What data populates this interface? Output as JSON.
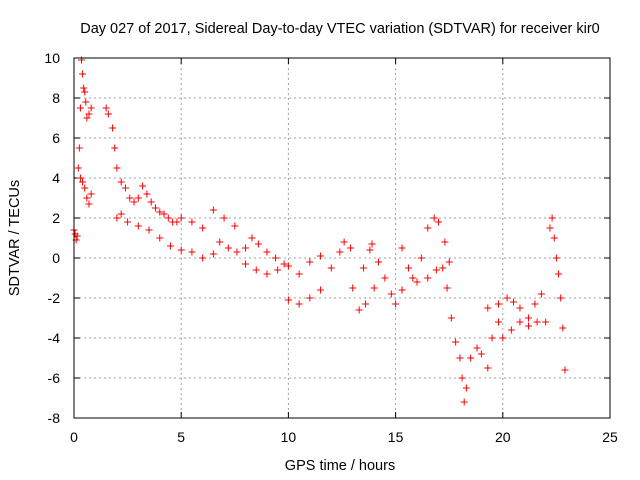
{
  "chart_data": {
    "type": "scatter",
    "title": "Day 027 of 2017, Sidereal Day-to-day VTEC variation (SDTVAR) for receiver kir0",
    "xlabel": "GPS time / hours",
    "ylabel": "SDTVAR / TECUs",
    "xlim": [
      0,
      25
    ],
    "ylim": [
      -8,
      10
    ],
    "xticks": [
      0,
      5,
      10,
      15,
      20,
      25
    ],
    "yticks": [
      -8,
      -6,
      -4,
      -2,
      0,
      2,
      4,
      6,
      8,
      10
    ],
    "grid": true,
    "marker": "+",
    "color": "#ff0000",
    "series": [
      {
        "name": "SDTVAR",
        "points": [
          [
            0.0,
            1.4
          ],
          [
            0.05,
            1.2
          ],
          [
            0.1,
            0.9
          ],
          [
            0.15,
            1.1
          ],
          [
            0.2,
            4.5
          ],
          [
            0.25,
            5.5
          ],
          [
            0.3,
            7.5
          ],
          [
            0.35,
            9.9
          ],
          [
            0.4,
            9.2
          ],
          [
            0.45,
            8.5
          ],
          [
            0.5,
            8.3
          ],
          [
            0.55,
            7.8
          ],
          [
            0.6,
            7.0
          ],
          [
            0.7,
            7.2
          ],
          [
            0.8,
            7.5
          ],
          [
            0.3,
            4.0
          ],
          [
            0.4,
            3.8
          ],
          [
            0.5,
            3.5
          ],
          [
            0.6,
            3.0
          ],
          [
            0.7,
            2.7
          ],
          [
            0.8,
            3.2
          ],
          [
            1.5,
            7.5
          ],
          [
            1.6,
            7.2
          ],
          [
            1.8,
            6.5
          ],
          [
            1.9,
            5.5
          ],
          [
            2.0,
            4.5
          ],
          [
            2.2,
            3.8
          ],
          [
            2.4,
            3.5
          ],
          [
            2.6,
            3.0
          ],
          [
            2.8,
            2.8
          ],
          [
            3.0,
            3.0
          ],
          [
            3.2,
            3.6
          ],
          [
            3.4,
            3.2
          ],
          [
            3.6,
            2.8
          ],
          [
            3.8,
            2.5
          ],
          [
            4.0,
            2.3
          ],
          [
            4.2,
            2.2
          ],
          [
            4.4,
            2.0
          ],
          [
            4.6,
            1.8
          ],
          [
            4.8,
            1.8
          ],
          [
            5.0,
            2.0
          ],
          [
            2.0,
            2.0
          ],
          [
            2.2,
            2.2
          ],
          [
            2.5,
            1.8
          ],
          [
            3.0,
            1.6
          ],
          [
            3.5,
            1.4
          ],
          [
            4.0,
            1.0
          ],
          [
            4.5,
            0.6
          ],
          [
            5.0,
            0.4
          ],
          [
            5.5,
            0.3
          ],
          [
            6.0,
            0.0
          ],
          [
            6.5,
            0.2
          ],
          [
            5.5,
            1.8
          ],
          [
            6.0,
            1.5
          ],
          [
            6.5,
            2.4
          ],
          [
            7.0,
            2.0
          ],
          [
            7.5,
            1.6
          ],
          [
            6.8,
            0.8
          ],
          [
            7.2,
            0.5
          ],
          [
            7.6,
            0.3
          ],
          [
            8.0,
            0.5
          ],
          [
            8.3,
            1.0
          ],
          [
            8.6,
            0.7
          ],
          [
            9.0,
            0.3
          ],
          [
            9.4,
            0.0
          ],
          [
            9.8,
            -0.3
          ],
          [
            8.0,
            -0.3
          ],
          [
            8.5,
            -0.6
          ],
          [
            9.0,
            -0.8
          ],
          [
            9.5,
            -0.6
          ],
          [
            10.0,
            -0.4
          ],
          [
            10.5,
            -0.8
          ],
          [
            11.0,
            -0.2
          ],
          [
            11.5,
            0.1
          ],
          [
            10.0,
            -2.1
          ],
          [
            10.5,
            -2.3
          ],
          [
            11.0,
            -2.0
          ],
          [
            11.5,
            -1.6
          ],
          [
            12.0,
            -0.5
          ],
          [
            12.4,
            0.3
          ],
          [
            12.6,
            0.8
          ],
          [
            12.9,
            0.5
          ],
          [
            13.0,
            -1.5
          ],
          [
            13.3,
            -2.6
          ],
          [
            13.6,
            -2.3
          ],
          [
            14.0,
            -1.5
          ],
          [
            13.5,
            -0.5
          ],
          [
            13.8,
            0.4
          ],
          [
            13.9,
            0.7
          ],
          [
            14.2,
            -0.2
          ],
          [
            14.5,
            -1.0
          ],
          [
            14.8,
            -1.8
          ],
          [
            15.0,
            -2.3
          ],
          [
            15.3,
            -1.6
          ],
          [
            15.3,
            0.5
          ],
          [
            15.6,
            -0.5
          ],
          [
            15.8,
            -1.0
          ],
          [
            16.0,
            -1.2
          ],
          [
            16.2,
            0.0
          ],
          [
            16.5,
            1.5
          ],
          [
            16.8,
            2.0
          ],
          [
            17.0,
            1.8
          ],
          [
            17.3,
            0.8
          ],
          [
            17.5,
            -0.2
          ],
          [
            16.5,
            -1.0
          ],
          [
            16.9,
            -0.6
          ],
          [
            17.2,
            -0.5
          ],
          [
            17.4,
            -1.5
          ],
          [
            17.6,
            -3.0
          ],
          [
            17.8,
            -4.2
          ],
          [
            18.0,
            -5.0
          ],
          [
            18.1,
            -6.0
          ],
          [
            18.2,
            -7.2
          ],
          [
            18.3,
            -6.5
          ],
          [
            18.5,
            -5.0
          ],
          [
            18.8,
            -4.5
          ],
          [
            19.0,
            -4.8
          ],
          [
            19.3,
            -5.5
          ],
          [
            19.5,
            -4.0
          ],
          [
            19.8,
            -3.2
          ],
          [
            19.3,
            -2.5
          ],
          [
            19.8,
            -2.3
          ],
          [
            20.2,
            -2.0
          ],
          [
            20.5,
            -2.2
          ],
          [
            20.8,
            -2.5
          ],
          [
            21.2,
            -3.0
          ],
          [
            21.5,
            -2.3
          ],
          [
            21.8,
            -1.8
          ],
          [
            20.0,
            -4.0
          ],
          [
            20.4,
            -3.6
          ],
          [
            20.8,
            -3.2
          ],
          [
            21.2,
            -3.4
          ],
          [
            21.6,
            -3.2
          ],
          [
            22.0,
            -3.2
          ],
          [
            22.2,
            1.5
          ],
          [
            22.3,
            2.0
          ],
          [
            22.4,
            1.0
          ],
          [
            22.5,
            0.0
          ],
          [
            22.6,
            -0.8
          ],
          [
            22.7,
            -2.0
          ],
          [
            22.8,
            -3.5
          ],
          [
            22.9,
            -5.6
          ]
        ]
      }
    ]
  }
}
